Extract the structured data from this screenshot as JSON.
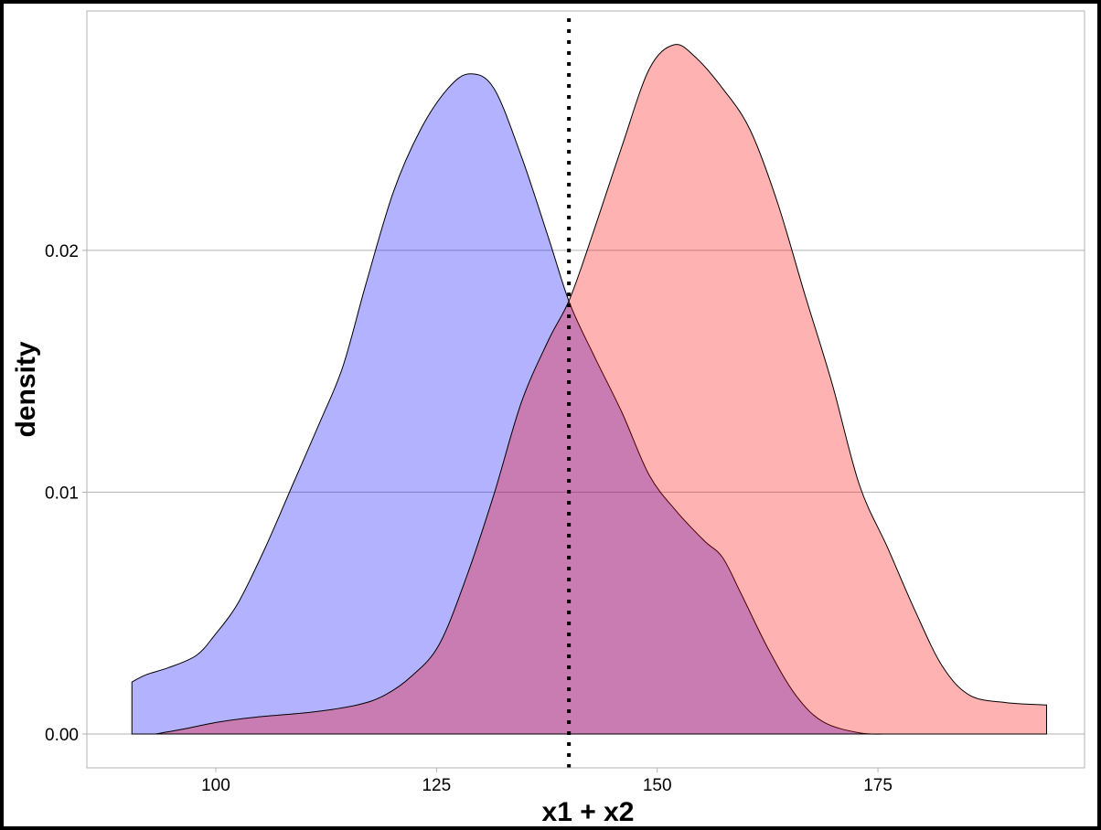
{
  "chart_data": {
    "type": "area",
    "title": "",
    "xlabel": "x1 + x2",
    "ylabel": "density",
    "xlim": [
      85.4,
      198.4
    ],
    "ylim": [
      -0.0014,
      0.0299
    ],
    "x_ticks": [
      100,
      125,
      150,
      175
    ],
    "x_tick_labels": [
      "100",
      "125",
      "150",
      "175"
    ],
    "y_ticks": [
      0,
      0.01,
      0.02
    ],
    "y_tick_labels": [
      "0.00",
      "0.01",
      "0.02"
    ],
    "grid": "horizontal major lines only",
    "legend": "none",
    "vline": {
      "x": 140,
      "style": "dotted",
      "color": "#000000"
    },
    "series": [
      {
        "color": "#0000ff",
        "opacity": 0.3,
        "x": [
          90.5,
          92.1,
          94.7,
          97.8,
          99.9,
          102.5,
          105.6,
          108.7,
          111.8,
          114.4,
          117.0,
          120.1,
          123.2,
          126.3,
          128.8,
          131.5,
          134.6,
          137.7,
          140.1,
          142.9,
          146.0,
          149.1,
          152.2,
          155.3,
          157.4,
          159.5,
          162.6,
          165.7,
          168.8,
          173.0,
          176.1
        ],
        "y": [
          0.00215,
          0.00245,
          0.00275,
          0.00325,
          0.0041,
          0.0054,
          0.0077,
          0.0103,
          0.0129,
          0.0152,
          0.0186,
          0.0224,
          0.025,
          0.0267,
          0.0273,
          0.0267,
          0.0239,
          0.0205,
          0.0178,
          0.0156,
          0.0133,
          0.0107,
          0.0092,
          0.008,
          0.0073,
          0.0058,
          0.0035,
          0.0016,
          0.0005,
          4e-05,
          0
        ]
      },
      {
        "color": "#ff0000",
        "opacity": 0.3,
        "x": [
          93.2,
          96.3,
          100.4,
          104.6,
          110.8,
          116.0,
          119.1,
          122.2,
          125.3,
          128.4,
          131.5,
          134.6,
          137.7,
          140.1,
          142.9,
          146.0,
          149.1,
          151.9,
          154.3,
          157.4,
          160.5,
          163.6,
          166.7,
          169.8,
          172.9,
          176.1,
          179.2,
          182.3,
          185.4,
          189.5,
          194.1
        ],
        "y": [
          0,
          0.0002,
          0.0005,
          0.0007,
          0.0009,
          0.0012,
          0.0016,
          0.0024,
          0.0037,
          0.0065,
          0.0099,
          0.0137,
          0.0163,
          0.018,
          0.0209,
          0.0243,
          0.0275,
          0.0285,
          0.028,
          0.0267,
          0.025,
          0.022,
          0.0182,
          0.0145,
          0.0103,
          0.0077,
          0.0051,
          0.0028,
          0.0016,
          0.0013,
          0.0012
        ]
      }
    ]
  }
}
